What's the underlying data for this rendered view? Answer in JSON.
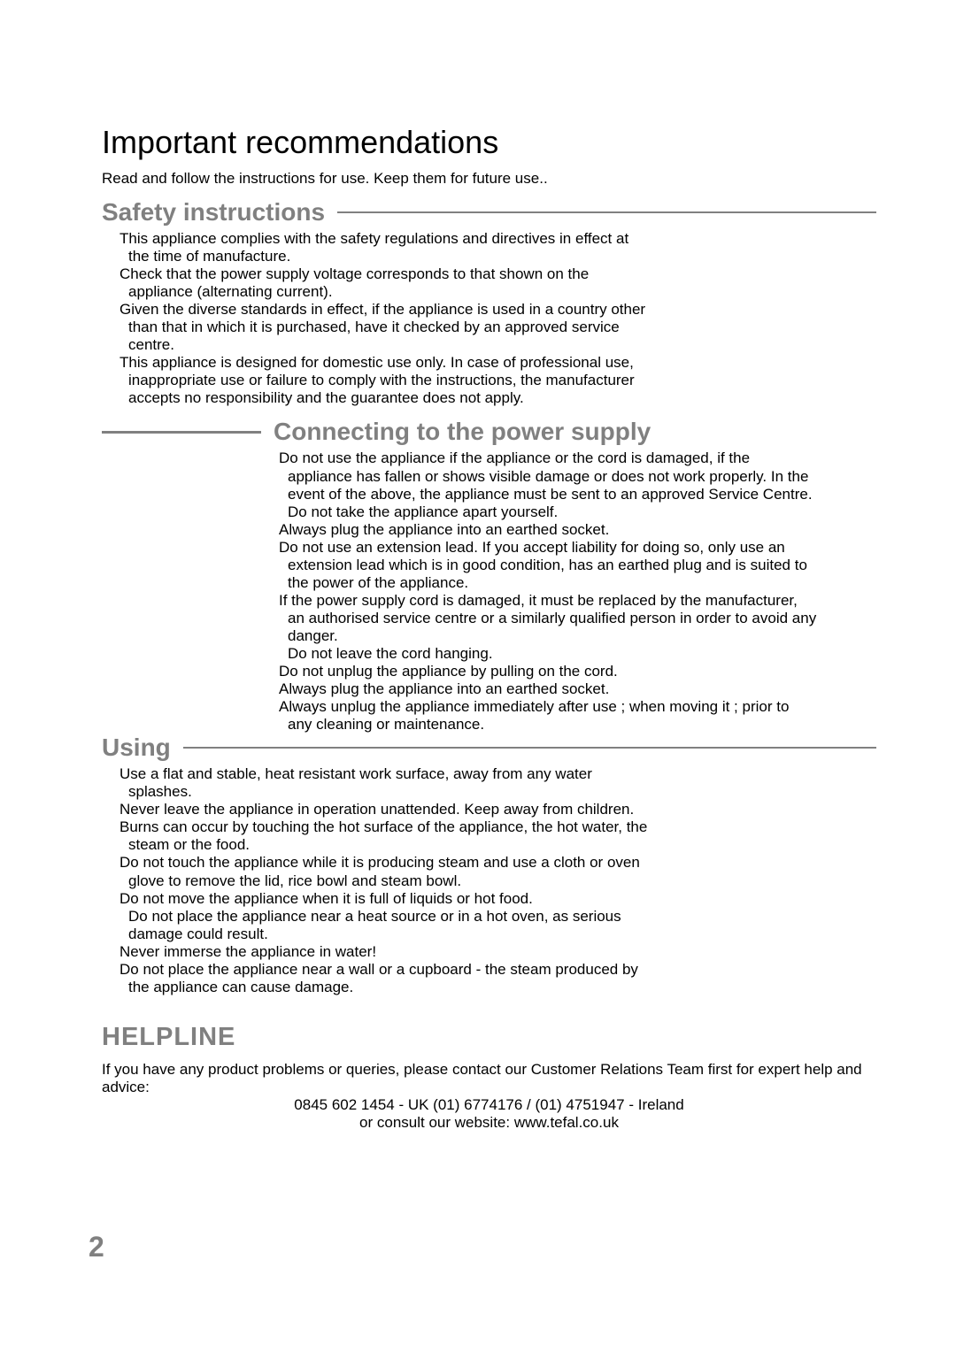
{
  "colors": {
    "text": "#000000",
    "heading_gray": "#808080",
    "background": "#ffffff",
    "rule_gray": "#808080"
  },
  "typography": {
    "body_size_pt": 17,
    "main_title_size_pt": 36,
    "section_heading_size_pt": 28,
    "helpline_title_size_pt": 29,
    "page_num_size_pt": 32,
    "font_family": "Arial"
  },
  "main_title": "Important recommendations",
  "intro": "Read and follow the instructions for use. Keep them for future use..",
  "safety": {
    "heading": "Safety instructions",
    "p1a": "This appliance complies with the safety regulations and directives in effect at",
    "p1b": "the time of manufacture.",
    "p2a": "Check that the power supply voltage corresponds to that shown on the",
    "p2b": "appliance (alternating current).",
    "p3a": "Given the diverse standards in effect, if the appliance is used in a country other",
    "p3b": "than that in which it is purchased, have it checked by an approved service",
    "p3c": "centre.",
    "p4a": "This appliance is designed for domestic use only. In case of professional use,",
    "p4b": "inappropriate use or failure to comply with the instructions, the manufacturer",
    "p4c": "accepts no responsibility and the guarantee does not apply."
  },
  "connecting": {
    "heading": "Connecting to the power supply",
    "p1a": "Do not use the appliance if the appliance or the cord is damaged, if the",
    "p1b": "appliance has fallen or shows visible damage or does not work properly. In the",
    "p1c": "event of the above, the appliance must be sent to an approved Service Centre.",
    "p1d": "Do not take the appliance apart yourself.",
    "p2": "Always plug the appliance into an earthed socket.",
    "p3a": "Do not use an extension lead. If you accept liability for doing so, only use an",
    "p3b": "extension lead which is in good condition, has an earthed plug and is suited to",
    "p3c": "the power of the appliance.",
    "p4a": "If the power supply cord is damaged, it must be replaced by the manufacturer,",
    "p4b": "an authorised service centre or a similarly qualified person in order to avoid any",
    "p4c": "danger.",
    "p5": "Do not leave the cord hanging.",
    "p6": "Do not unplug the appliance by pulling on the cord.",
    "p7": "Always plug the appliance into an earthed socket.",
    "p8a": "Always unplug the appliance immediately after use ; when moving it ; prior to",
    "p8b": "any cleaning or maintenance."
  },
  "using": {
    "heading": "Using",
    "p1a": "Use a flat and stable, heat resistant work surface, away from any water",
    "p1b": "splashes.",
    "p2": "Never leave the appliance in operation unattended. Keep away from children.",
    "p3a": "Burns can occur by touching the hot surface of the appliance, the hot water, the",
    "p3b": "steam or the food.",
    "p4a": "Do not touch the appliance while it is producing steam and use a cloth or oven",
    "p4b": "glove to remove the lid, rice bowl and steam bowl.",
    "p5": "Do not move the appliance when it is full of liquids or hot food.",
    "p6a": "Do not place the appliance near a heat source or in a hot oven, as serious",
    "p6b": "damage could result.",
    "p7": "Never immerse the appliance in water!",
    "p8a": "Do not place the appliance near a wall or a cupboard - the steam produced by",
    "p8b": "the appliance can cause damage."
  },
  "helpline": {
    "heading": "HELPLINE",
    "intro": "If you have any product problems or queries, please contact our Customer Relations Team first for expert help and advice:",
    "phones": "0845 602 1454 - UK (01) 6774176 / (01) 4751947 - Ireland",
    "website": "or consult our website: www.tefal.co.uk"
  },
  "page_number": "2"
}
